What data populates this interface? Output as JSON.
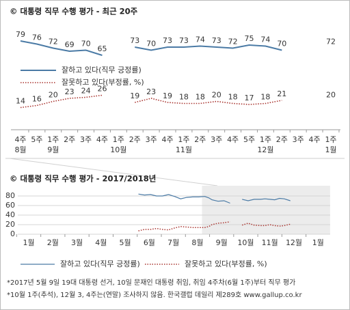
{
  "charts": [
    {
      "type": "line",
      "title": "©  대통령 직무 수행 평가 - 최근 20주",
      "categories": [
        "4주\n8월",
        "5주",
        "1주\n9월",
        "2주",
        "3주",
        "4주",
        "1주\n10월",
        "2주",
        "3주",
        "4주",
        "1주\n11월",
        "2주",
        "3주",
        "4주",
        "5주",
        "1주\n12월",
        "2주",
        "3주",
        "4주",
        "1주\n1월"
      ],
      "ylim": [
        0,
        100
      ],
      "series": [
        {
          "name": "잘하고 있다(직무 긍정률)",
          "color": "#4a7aa5",
          "style": "solid",
          "values": [
            79,
            76,
            72,
            69,
            70,
            65,
            null,
            73,
            70,
            73,
            73,
            74,
            73,
            72,
            75,
            74,
            70,
            null,
            null,
            72
          ]
        },
        {
          "name": "잘못하고 있다(부정률, %)",
          "color": "#a8322d",
          "style": "dotted",
          "values": [
            14,
            16,
            20,
            23,
            24,
            26,
            null,
            19,
            23,
            19,
            18,
            18,
            20,
            18,
            17,
            18,
            21,
            null,
            null,
            20
          ]
        }
      ]
    },
    {
      "type": "line",
      "title": "©  대통령 직무 수행 평가 - 2017/2018년",
      "xlim": [
        1,
        14
      ],
      "xticks": [
        {
          "value": 1,
          "label": "1월"
        },
        {
          "value": 2,
          "label": "2월"
        },
        {
          "value": 3,
          "label": "3월"
        },
        {
          "value": 4,
          "label": "4월"
        },
        {
          "value": 5,
          "label": "5월"
        },
        {
          "value": 6,
          "label": "6월"
        },
        {
          "value": 7,
          "label": "7월"
        },
        {
          "value": 8,
          "label": "8월"
        },
        {
          "value": 9,
          "label": "9월"
        },
        {
          "value": 10,
          "label": "10월"
        },
        {
          "value": 11,
          "label": "11월"
        },
        {
          "value": 12,
          "label": "12월"
        },
        {
          "value": 13,
          "label": "1월"
        }
      ],
      "ylim": [
        0,
        90
      ],
      "yticks": [
        0,
        20,
        40,
        60,
        80
      ],
      "grid": true,
      "x": [
        6.05,
        6.3,
        6.55,
        6.8,
        7.05,
        7.3,
        7.55,
        7.8,
        8.05,
        8.3,
        8.55,
        8.8,
        8.97,
        9.1,
        9.35,
        9.6,
        9.85,
        10.1,
        10.35,
        10.6,
        10.85,
        11.1,
        11.3,
        11.5,
        11.7,
        11.9,
        12.1,
        12.35,
        12.6,
        12.85,
        13.1
      ],
      "series": [
        {
          "name": "잘하고 있다(직무 긍정률)",
          "color": "#4a7aa5",
          "style": "solid",
          "values": [
            84,
            82,
            83,
            80,
            80,
            83,
            79,
            74,
            77,
            78,
            78,
            79,
            76,
            72,
            69,
            70,
            65,
            null,
            73,
            70,
            73,
            73,
            74,
            73,
            72,
            75,
            74,
            70,
            null,
            null,
            72
          ]
        },
        {
          "name": "잘못하고 있다(부정률, %)",
          "color": "#a8322d",
          "style": "dotted",
          "values": [
            7,
            10,
            10,
            12,
            10,
            9,
            13,
            16,
            15,
            14,
            14,
            14,
            16,
            20,
            23,
            24,
            26,
            null,
            19,
            23,
            19,
            18,
            18,
            20,
            18,
            17,
            18,
            21,
            null,
            null,
            20
          ]
        }
      ]
    }
  ],
  "footnotes": [
    "*2017년 5월 9일 19대 대통령 선거, 10일 문재인 대통령 취임, 취임 4주차(6월 1주)부터 직무 평가",
    "*10월 1주(추석), 12월 3, 4주는(연말) 조사하지 않음. 한국갤럽 데일리 제289호 www.gallup.co.kr"
  ]
}
